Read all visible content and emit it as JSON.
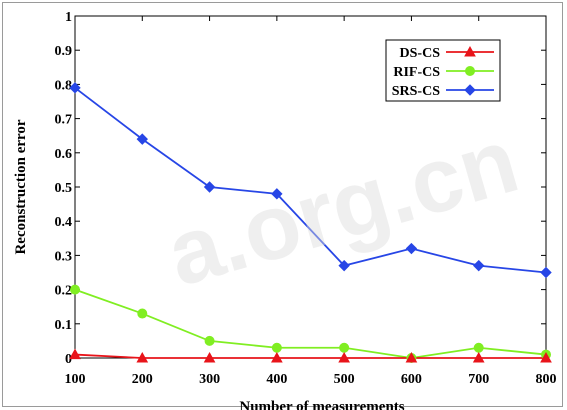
{
  "chart_data": {
    "type": "line",
    "xlabel": "Number of measurements",
    "ylabel": "Reconstruction error",
    "x": [
      100,
      200,
      300,
      400,
      500,
      600,
      700,
      800
    ],
    "xticks": [
      "100",
      "200",
      "300",
      "400",
      "500",
      "600",
      "700",
      "800"
    ],
    "yticks": [
      "0",
      "0.1",
      "0.2",
      "0.3",
      "0.4",
      "0.5",
      "0.6",
      "0.7",
      "0.8",
      "0.9",
      "1"
    ],
    "xlim": [
      100,
      800
    ],
    "ylim": [
      0,
      1
    ],
    "grid": false,
    "legend_position": "top-right",
    "series": [
      {
        "name": "DS-CS",
        "color": "#e8141a",
        "marker": "triangle",
        "values": [
          0.01,
          0.0,
          0.0,
          0.0,
          0.0,
          0.0,
          0.0,
          0.0
        ]
      },
      {
        "name": "RIF-CS",
        "color": "#80ee22",
        "marker": "circle",
        "values": [
          0.2,
          0.13,
          0.05,
          0.03,
          0.03,
          0.0,
          0.03,
          0.01
        ]
      },
      {
        "name": "SRS-CS",
        "color": "#2746e6",
        "marker": "diamond",
        "values": [
          0.79,
          0.64,
          0.5,
          0.48,
          0.27,
          0.32,
          0.27,
          0.25
        ]
      }
    ]
  }
}
